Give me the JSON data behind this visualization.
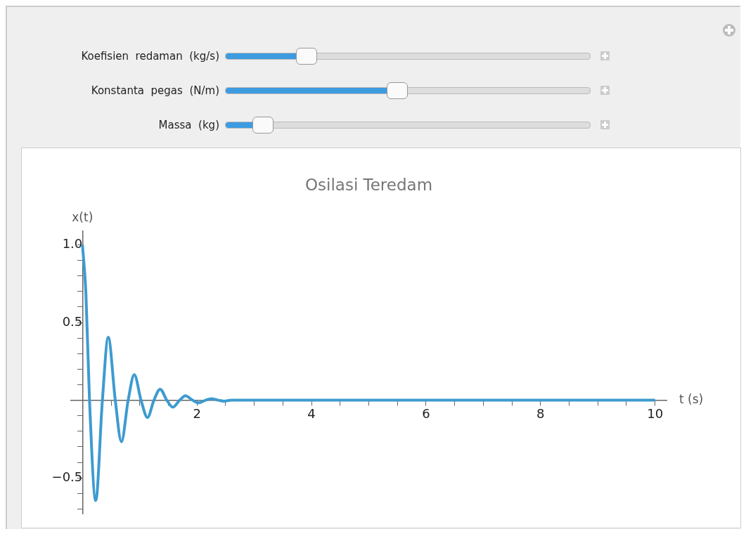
{
  "chart_data": {
    "type": "line",
    "title": "Osilasi Teredam",
    "xlabel": "t (s)",
    "ylabel": "x(t)",
    "annotations": [
      "Koefisien  redaman  (kg/s)",
      "Konstanta  pegas  (N/m)",
      "Massa  (kg)"
    ],
    "x": [
      0,
      0.06,
      0.123,
      0.232,
      0.348,
      0.45,
      0.573,
      0.68,
      0.798,
      0.905,
      1.023,
      1.136,
      1.248,
      1.356,
      1.473,
      1.578,
      1.698,
      1.798,
      1.923,
      2.03,
      2.148,
      2.25,
      2.373,
      2.47,
      2.598,
      3,
      10
    ],
    "series": [
      {
        "color": "#3d9bd0",
        "values": [
          1.0,
          0.69,
          0,
          -0.646,
          0,
          0.405,
          0,
          -0.267,
          0,
          0.164,
          0,
          -0.111,
          0,
          0.071,
          0,
          -0.045,
          0,
          0.029,
          0,
          -0.017,
          0,
          0.01,
          0,
          -0.006,
          0,
          0,
          0
        ]
      }
    ],
    "xlim": [
      -0.2,
      10.2
    ],
    "ylim": [
      -0.73,
      1.09
    ],
    "xticks": [
      {
        "value": 0.5,
        "label": null
      },
      {
        "value": 1,
        "label": null
      },
      {
        "value": 1.5,
        "label": null
      },
      2,
      {
        "value": 2.5,
        "label": null
      },
      {
        "value": 3,
        "label": null
      },
      {
        "value": 3.5,
        "label": null
      },
      4,
      {
        "value": 4.5,
        "label": null
      },
      {
        "value": 5,
        "label": null
      },
      {
        "value": 5.5,
        "label": null
      },
      6,
      {
        "value": 6.5,
        "label": null
      },
      {
        "value": 7,
        "label": null
      },
      {
        "value": 7.5,
        "label": null
      },
      8,
      {
        "value": 8.5,
        "label": null
      },
      {
        "value": 9,
        "label": null
      },
      {
        "value": 9.5,
        "label": null
      },
      10
    ],
    "yticks": [
      {
        "value": -0.7,
        "label": null
      },
      {
        "value": -0.6,
        "label": null
      },
      {
        "value": -0.5,
        "label": "−0.5"
      },
      {
        "value": -0.4,
        "label": null
      },
      {
        "value": -0.3,
        "label": null
      },
      {
        "value": -0.2,
        "label": null
      },
      {
        "value": -0.1,
        "label": null
      },
      {
        "value": 0.1,
        "label": null
      },
      {
        "value": 0.2,
        "label": null
      },
      {
        "value": 0.3,
        "label": null
      },
      {
        "value": 0.4,
        "label": null
      },
      0.5,
      {
        "value": 0.6,
        "label": null
      },
      {
        "value": 0.7,
        "label": null
      },
      {
        "value": 0.8,
        "label": null
      },
      {
        "value": 0.9,
        "label": null
      },
      {
        "value": 1,
        "label": "1.0"
      }
    ],
    "grid": false,
    "legend": false,
    "marker": "none",
    "line_style": "solid"
  }
}
